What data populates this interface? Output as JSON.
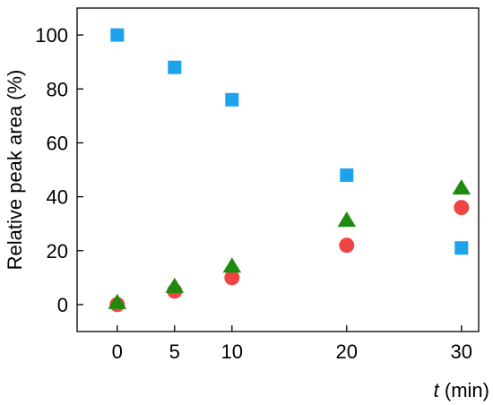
{
  "chart_data": {
    "type": "scatter",
    "title": "",
    "xlabel_var": "t",
    "xlabel_unit": " (min)",
    "ylabel": "Relative peak area (%)",
    "xlim": [
      -3.5,
      31.5
    ],
    "ylim": [
      -10,
      110
    ],
    "xticks": [
      0,
      5,
      10,
      20,
      30
    ],
    "yticks": [
      0,
      20,
      40,
      60,
      80,
      100
    ],
    "grid": false,
    "series": [
      {
        "marker": "square",
        "color": "#1ca3ec",
        "x": [
          0,
          5,
          10,
          20,
          30
        ],
        "y": [
          100,
          88,
          76,
          48,
          21
        ]
      },
      {
        "marker": "circle",
        "color": "#ef4444",
        "x": [
          0,
          5,
          10,
          20,
          30
        ],
        "y": [
          0,
          5,
          10,
          22,
          36
        ]
      },
      {
        "marker": "triangle",
        "color": "#1e8a0e",
        "x": [
          0,
          5,
          10,
          20,
          30
        ],
        "y": [
          0.5,
          6.5,
          14,
          31,
          43
        ]
      }
    ]
  }
}
